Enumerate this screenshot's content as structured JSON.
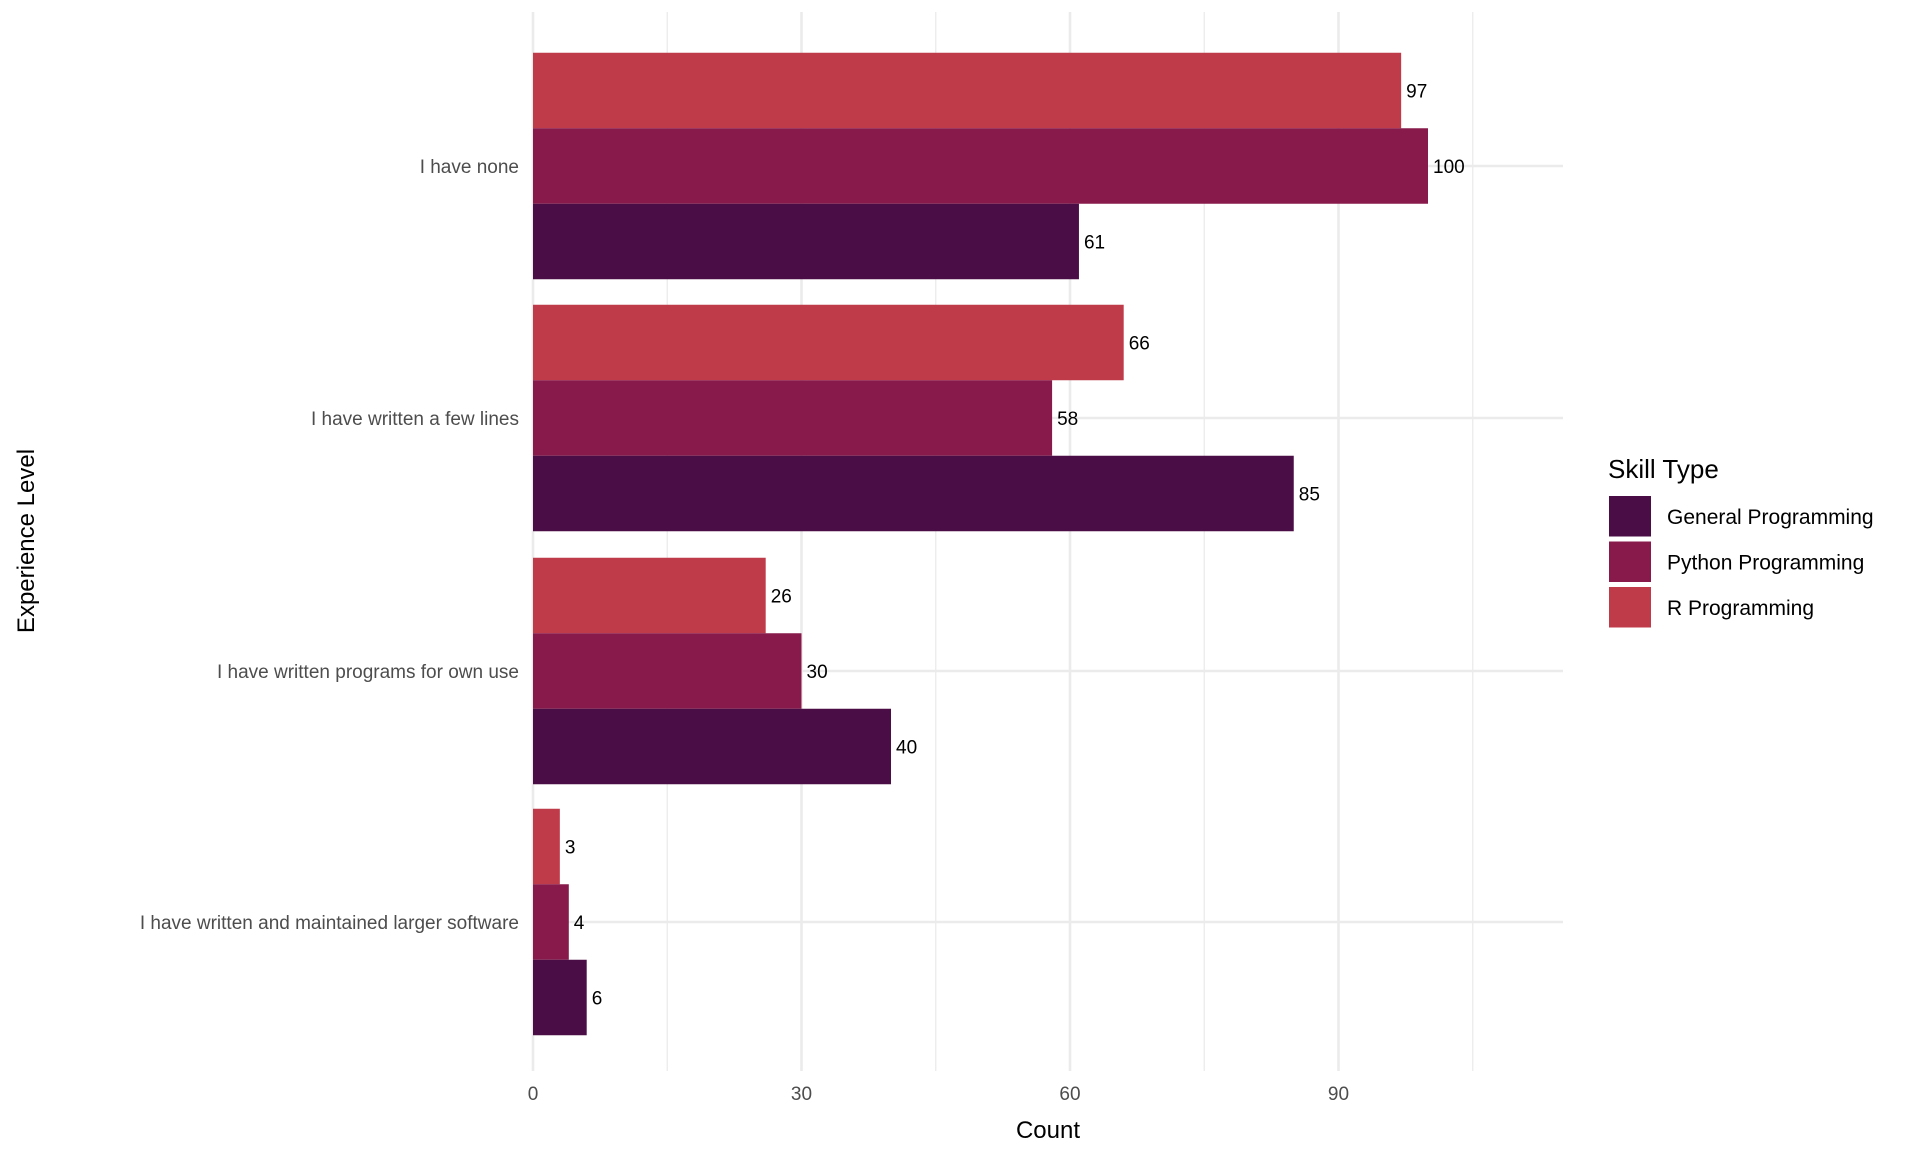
{
  "chart_data": {
    "type": "bar",
    "orientation": "horizontal",
    "title": "",
    "xlabel": "Count",
    "ylabel": "Experience Level",
    "xlim": [
      0,
      115
    ],
    "x_ticks": [
      0,
      30,
      60,
      90
    ],
    "x_minor_ticks": [
      15,
      45,
      75,
      105
    ],
    "grid": true,
    "categories": [
      "I have none",
      "I have written a few lines",
      "I have written programs for own use",
      "I have written and maintained larger software"
    ],
    "series": [
      {
        "name": "General Programming",
        "color": "#4A0D46",
        "values": [
          61,
          85,
          40,
          6
        ]
      },
      {
        "name": "Python Programming",
        "color": "#881A4B",
        "values": [
          100,
          58,
          30,
          4
        ]
      },
      {
        "name": "R Programming",
        "color": "#C03B4A",
        "values": [
          97,
          66,
          26,
          3
        ]
      }
    ],
    "data_labels": true,
    "legend": {
      "title": "Skill Type",
      "position": "right"
    }
  }
}
